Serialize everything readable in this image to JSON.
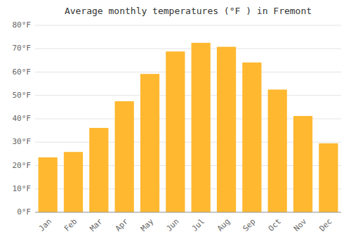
{
  "chart_data": {
    "type": "bar",
    "title": "Average monthly temperatures (°F ) in Fremont",
    "categories": [
      "Jan",
      "Feb",
      "Mar",
      "Apr",
      "May",
      "Jun",
      "Jul",
      "Aug",
      "Sep",
      "Oct",
      "Nov",
      "Dec"
    ],
    "values": [
      23.5,
      25.8,
      36.1,
      47.5,
      59.2,
      68.8,
      72.5,
      70.8,
      64.1,
      52.5,
      41.2,
      29.5
    ],
    "color": "#FFB830",
    "ylim": [
      0,
      80
    ],
    "yticks": [
      {
        "value": 0,
        "label": "0°F"
      },
      {
        "value": 10,
        "label": "10°F"
      },
      {
        "value": 20,
        "label": "20°F"
      },
      {
        "value": 30,
        "label": "30°F"
      },
      {
        "value": 40,
        "label": "40°F"
      },
      {
        "value": 50,
        "label": "50°F"
      },
      {
        "value": 60,
        "label": "60°F"
      },
      {
        "value": 70,
        "label": "70°F"
      },
      {
        "value": 80,
        "label": "80°F"
      }
    ],
    "grid": true
  }
}
